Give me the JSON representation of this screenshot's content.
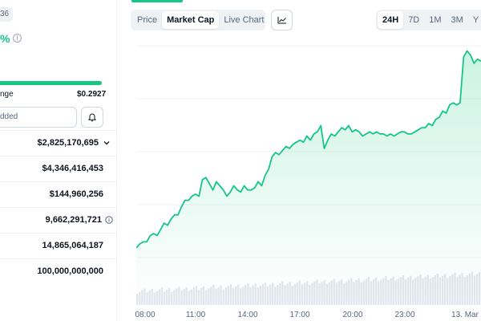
{
  "left": {
    "badge": "36",
    "change_pct": "%",
    "range": {
      "low_label": "nge",
      "high_value": "$0.2927"
    },
    "watchlist_placeholder": "dded",
    "stats": [
      {
        "value": "$2,825,170,695",
        "icon": "chevron-down-icon"
      },
      {
        "value": "$4,346,416,453"
      },
      {
        "value": "$144,960,256"
      },
      {
        "value": "9,662,291,721",
        "icon": "info-icon"
      },
      {
        "value": "14,865,064,187"
      },
      {
        "value": "100,000,000,000"
      }
    ]
  },
  "toolbar": {
    "tabs": [
      "Price",
      "Market Cap",
      "Live Chart"
    ],
    "active_tab": "Market Cap",
    "ranges": [
      "24H",
      "7D",
      "1M",
      "3M",
      "Y"
    ],
    "active_range": "24H"
  },
  "colors": {
    "accent": "#16c784",
    "muted": "#58667e",
    "text": "#0d1421"
  },
  "chart_data": {
    "type": "area",
    "xlabel": "",
    "ylabel": "",
    "x_ticks": [
      "08:00",
      "11:00",
      "14:00",
      "17:00",
      "20:00",
      "23:00",
      "13. Mar"
    ],
    "grid": true,
    "series": [
      {
        "values": [
          0.1,
          0.12,
          0.13,
          0.13,
          0.16,
          0.17,
          0.16,
          0.19,
          0.22,
          0.21,
          0.24,
          0.26,
          0.26,
          0.3,
          0.33,
          0.33,
          0.35,
          0.36,
          0.35,
          0.43,
          0.44,
          0.41,
          0.38,
          0.42,
          0.4,
          0.38,
          0.35,
          0.37,
          0.4,
          0.38,
          0.37,
          0.4,
          0.38,
          0.38,
          0.39,
          0.42,
          0.4,
          0.45,
          0.48,
          0.54,
          0.56,
          0.55,
          0.57,
          0.59,
          0.58,
          0.6,
          0.61,
          0.62,
          0.61,
          0.64,
          0.62,
          0.65,
          0.66,
          0.69,
          0.58,
          0.62,
          0.65,
          0.64,
          0.66,
          0.68,
          0.67,
          0.69,
          0.66,
          0.67,
          0.66,
          0.64,
          0.65,
          0.66,
          0.65,
          0.66,
          0.65,
          0.65,
          0.64,
          0.65,
          0.64,
          0.65,
          0.66,
          0.66,
          0.65,
          0.65,
          0.66,
          0.67,
          0.68,
          0.68,
          0.7,
          0.69,
          0.72,
          0.73,
          0.76,
          0.75,
          0.79,
          0.8,
          0.79,
          0.8,
          1.02,
          1.05,
          1.03,
          0.99,
          1.01,
          1.0
        ]
      }
    ],
    "volume_bars": true
  }
}
